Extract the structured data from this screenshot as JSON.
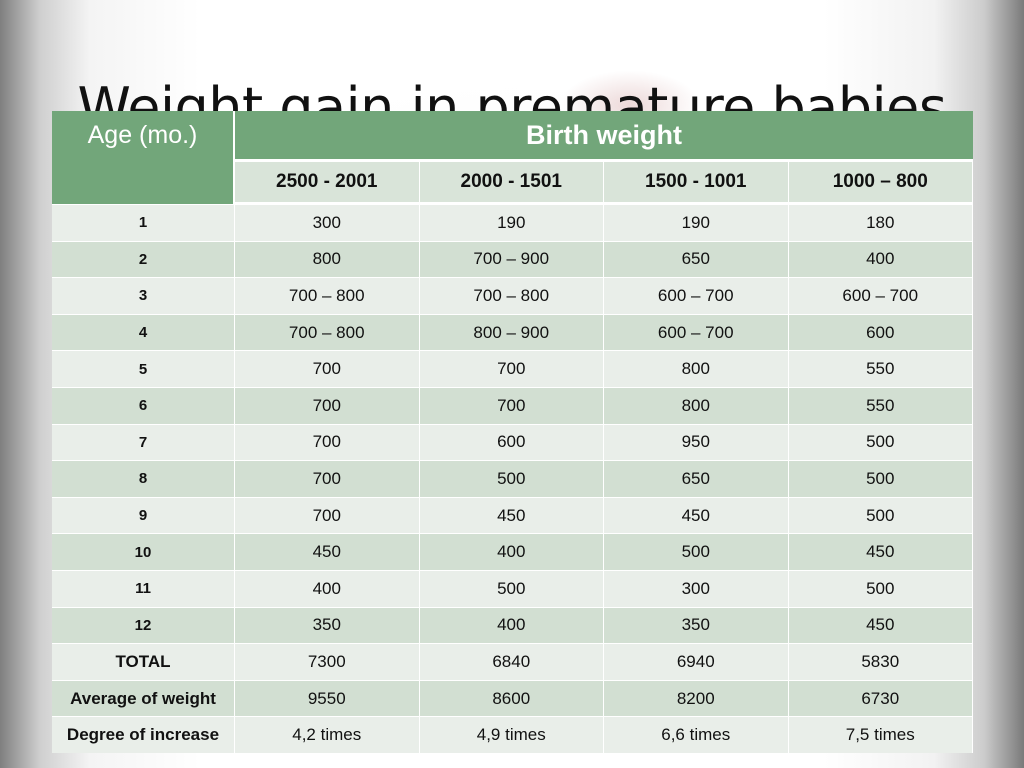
{
  "slide": {
    "title": "Weight gain in premature babies"
  },
  "table": {
    "age_header": "Age (mo.)",
    "group_header": "Birth weight",
    "columns": [
      "2500 - 2001",
      "2000 - 1501",
      "1500 - 1001",
      "1000 – 800"
    ],
    "rows": [
      {
        "label": "1",
        "values": [
          "300",
          "190",
          "190",
          "180"
        ]
      },
      {
        "label": "2",
        "values": [
          "800",
          "700 – 900",
          "650",
          "400"
        ]
      },
      {
        "label": "3",
        "values": [
          "700 – 800",
          "700 – 800",
          "600 – 700",
          "600 – 700"
        ]
      },
      {
        "label": "4",
        "values": [
          "700 – 800",
          "800 – 900",
          "600 – 700",
          "600"
        ]
      },
      {
        "label": "5",
        "values": [
          "700",
          "700",
          "800",
          "550"
        ]
      },
      {
        "label": "6",
        "values": [
          "700",
          "700",
          "800",
          "550"
        ]
      },
      {
        "label": "7",
        "values": [
          "700",
          "600",
          "950",
          "500"
        ]
      },
      {
        "label": "8",
        "values": [
          "700",
          "500",
          "650",
          "500"
        ]
      },
      {
        "label": "9",
        "values": [
          "700",
          "450",
          "450",
          "500"
        ]
      },
      {
        "label": "10",
        "values": [
          "450",
          "400",
          "500",
          "450"
        ]
      },
      {
        "label": "11",
        "values": [
          "400",
          "500",
          "300",
          "500"
        ]
      },
      {
        "label": "12",
        "values": [
          "350",
          "400",
          "350",
          "450"
        ]
      },
      {
        "label": "TOTAL",
        "values": [
          "7300",
          "6840",
          "6940",
          "5830"
        ]
      },
      {
        "label": "Average of  weight",
        "values": [
          "9550",
          "8600",
          "8200",
          "6730"
        ]
      },
      {
        "label": "Degree of increase",
        "values": [
          "4,2 times",
          "4,9 times",
          "6,6 times",
          "7,5 times"
        ]
      }
    ]
  },
  "colors": {
    "header_green": "#72a67a",
    "row_light": "#e9eee9",
    "row_dark": "#d2dfd2"
  }
}
